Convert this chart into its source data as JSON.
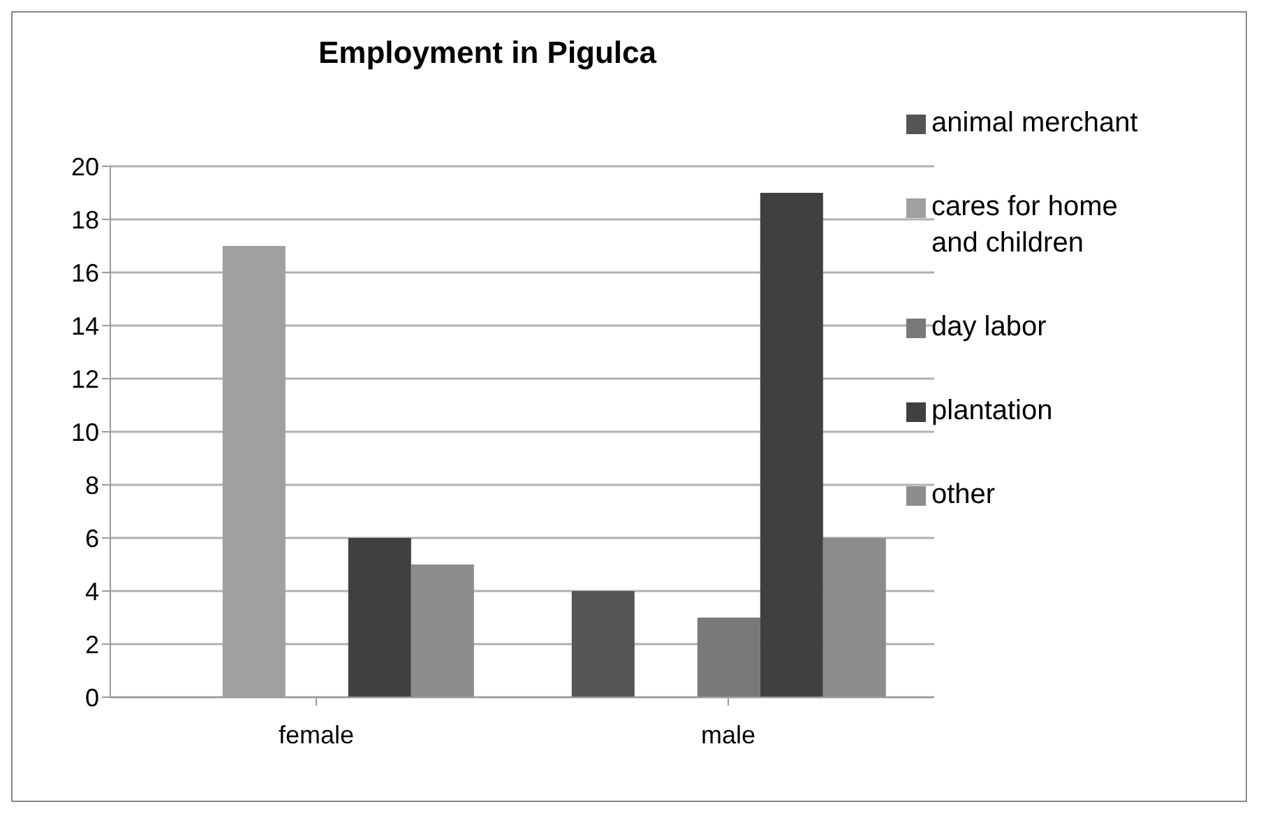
{
  "chart_data": {
    "type": "bar",
    "title": "Employment in Pigulca",
    "categories": [
      "female",
      "male"
    ],
    "series": [
      {
        "name": "animal merchant",
        "color": "#555555",
        "values": [
          0,
          4
        ]
      },
      {
        "name": "cares for home and children",
        "color": "#a0a0a0",
        "values": [
          17,
          0
        ]
      },
      {
        "name": "day labor",
        "color": "#797979",
        "values": [
          0,
          3
        ]
      },
      {
        "name": "plantation",
        "color": "#404040",
        "values": [
          6,
          19
        ]
      },
      {
        "name": "other",
        "color": "#8c8c8c",
        "values": [
          5,
          6
        ]
      }
    ],
    "ylim": [
      0,
      20
    ],
    "yticks": [
      0,
      2,
      4,
      6,
      8,
      10,
      12,
      14,
      16,
      18,
      20
    ],
    "grid": "y",
    "legend": "right"
  }
}
